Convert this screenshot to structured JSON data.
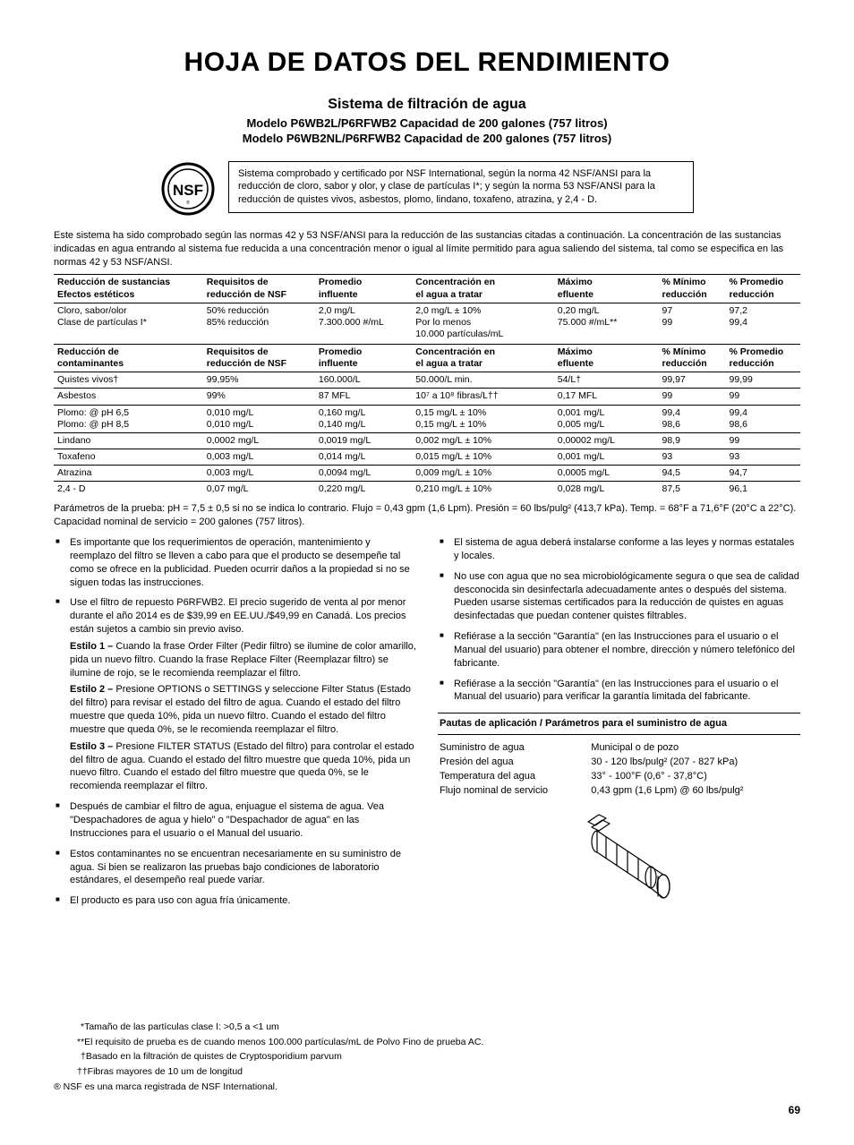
{
  "title": "HOJA DE DATOS DEL RENDIMIENTO",
  "subtitle": "Sistema de filtración de agua",
  "model_lines": [
    "Modelo P6WB2L/P6RFWB2 Capacidad de 200 galones (757 litros)",
    "Modelo P6WB2NL/P6RFWB2 Capacidad de 200 galones (757 litros)"
  ],
  "intro_box": "Sistema comprobado y certificado por NSF International, según la norma 42 NSF/ANSI para la reducción de cloro, sabor y olor, y clase de partículas I*; y según la norma 53 NSF/ANSI para la reducción de quistes vivos, asbestos, plomo, lindano, toxafeno, atrazina, y 2,4 - D.",
  "system_note": "Este sistema ha sido comprobado según las normas 42 y 53 NSF/ANSI para la reducción de las sustancias citadas a continuación. La concentración de las sustancias indicadas en agua entrando al sistema fue reducida a una concentración menor o igual al límite permitido para agua saliendo del sistema, tal como se especifica en las normas 42 y 53 NSF/ANSI.",
  "table1": {
    "headers": [
      "Reducción de sustancias\nEfectos estéticos",
      "Requisitos de\nreducción de NSF",
      "Promedio\ninfluente",
      "Concentración en\nel agua a tratar",
      "Máximo\nefluente",
      "% Mínimo\nreducción",
      "% Promedio\nreducción"
    ],
    "rows": [
      [
        "Cloro, sabor/olor\nClase de partículas I*",
        "50% reducción\n85% reducción",
        "2,0 mg/L\n7.300.000 #/mL",
        "2,0 mg/L ± 10%\nPor lo menos\n10.000 partículas/mL",
        "0,20 mg/L\n75.000 #/mL**",
        "97\n99",
        "97,2\n99,4"
      ]
    ]
  },
  "table2": {
    "headers": [
      "Reducción de\ncontaminantes",
      "Requisitos de\nreducción de NSF",
      "Promedio\ninfluente",
      "Concentración en\nel agua a tratar",
      "Máximo\nefluente",
      "% Mínimo\nreducción",
      "% Promedio\nreducción"
    ],
    "rows": [
      [
        "Quistes vivos†",
        "99,95%",
        "160.000/L",
        "50.000/L min.",
        "54/L†",
        "99,97",
        "99,99"
      ],
      [
        "Asbestos",
        "99%",
        "87 MFL",
        "10⁷ a 10⁸ fibras/L††",
        "0,17 MFL",
        "99",
        "99"
      ],
      [
        "Plomo: @ pH 6,5\nPlomo: @ pH 8,5",
        "0,010 mg/L\n0,010 mg/L",
        "0,160 mg/L\n0,140 mg/L",
        "0,15 mg/L ± 10%\n0,15 mg/L ± 10%",
        "0,001 mg/L\n0,005 mg/L",
        "99,4\n98,6",
        "99,4\n98,6"
      ],
      [
        "Lindano",
        "0,0002 mg/L",
        "0,0019 mg/L",
        "0,002 mg/L ± 10%",
        "0,00002 mg/L",
        "98,9",
        "99"
      ],
      [
        "Toxafeno",
        "0,003 mg/L",
        "0,014 mg/L",
        "0,015 mg/L ± 10%",
        "0,001 mg/L",
        "93",
        "93"
      ],
      [
        "Atrazina",
        "0,003 mg/L",
        "0,0094 mg/L",
        "0,009 mg/L ± 10%",
        "0,0005 mg/L",
        "94,5",
        "94,7"
      ],
      [
        "2,4 - D",
        "0,07 mg/L",
        "0,220 mg/L",
        "0,210 mg/L ± 10%",
        "0,028 mg/L",
        "87,5",
        "96,1"
      ]
    ]
  },
  "params_line": "Parámetros de la prueba: pH = 7,5 ± 0,5 si no se indica lo contrario. Flujo = 0,43 gpm (1,6 Lpm). Presión = 60 lbs/pulg² (413,7 kPa). Temp. = 68°F a 71,6°F (20°C a 22°C). Capacidad nominal de servicio = 200 galones (757 litros).",
  "left_bullets_1": "Es importante que los requerimientos de operación, mantenimiento y reemplazo del filtro se lleven a cabo para que el producto se desempeñe tal como se ofrece en la publicidad. Pueden ocurrir daños a la propiedad si no se siguen todas las instrucciones.",
  "left_bullets_2_intro": "Use el filtro de repuesto P6RFWB2. El precio sugerido de venta al por menor durante el año 2014 es de $39,99 en EE.UU./$49,99 en Canadá. Los precios están sujetos a cambio sin previo aviso.",
  "estilo1": "Estilo 1 – Cuando la frase Order Filter (Pedir filtro) se ilumine de color amarillo, pida un nuevo filtro. Cuando la frase Replace Filter (Reemplazar filtro) se ilumine de rojo, se le recomienda reemplazar el filtro.",
  "estilo2": "Estilo 2 – Presione OPTIONS o SETTINGS y seleccione Filter Status (Estado del filtro) para revisar el estado del filtro de agua. Cuando el estado del filtro muestre que queda 10%, pida un nuevo filtro. Cuando el estado del filtro muestre que queda 0%, se le recomienda reemplazar el filtro.",
  "estilo3": "Estilo 3 – Presione FILTER STATUS (Estado del filtro) para controlar el estado del filtro de agua. Cuando el estado del filtro muestre que queda 10%, pida un nuevo filtro. Cuando el estado del filtro muestre que queda 0%, se le recomienda reemplazar el filtro.",
  "left_bullets_3": "Después de cambiar el filtro de agua, enjuague el sistema de agua. Vea \"Despachadores de agua y hielo\" o \"Despachador de agua\" en las Instrucciones para el usuario o el Manual del usuario.",
  "left_bullets_4": "Estos contaminantes no se encuentran necesariamente en su suministro de agua. Si bien se realizaron las pruebas bajo condiciones de laboratorio estándares, el desempeño real puede variar.",
  "left_bullets_5": "El producto es para uso con agua fría únicamente.",
  "right_bullets_1": "El sistema de agua deberá instalarse conforme a las leyes y normas estatales y locales.",
  "right_bullets_2": "No use con agua que no sea microbiológicamente segura o que sea de calidad desconocida sin desinfectarla adecuadamente antes o después del sistema. Pueden usarse sistemas certificados para la reducción de quistes en aguas desinfectadas que puedan contener quistes filtrables.",
  "right_bullets_3": "Refiérase a la sección \"Garantía\" (en las Instrucciones para el usuario o el Manual del usuario) para obtener el nombre, dirección y número telefónico del fabricante.",
  "right_bullets_4": "Refiérase a la sección \"Garantía\" (en las Instrucciones para el usuario o el Manual del usuario) para verificar la garantía limitada del fabricante.",
  "app_title": "Pautas de aplicación / Parámetros para el suministro de agua",
  "app_params": [
    [
      "Suministro de agua",
      "Municipal o de pozo"
    ],
    [
      "Presión del agua",
      "30 - 120 lbs/pulg² (207 - 827 kPa)"
    ],
    [
      "Temperatura del agua",
      "33° - 100°F (0,6° - 37,8°C)"
    ],
    [
      "Flujo nominal de servicio",
      "0,43 gpm (1,6 Lpm) @ 60 lbs/pulg²"
    ]
  ],
  "footnotes": [
    "*Tamaño de las partículas clase I: >0,5 a <1 um",
    "**El requisito de prueba es de cuando menos 100.000 partículas/mL de Polvo Fino de prueba AC.",
    "†Basado en la filtración de quistes de Cryptosporidium parvum",
    "††Fibras mayores de 10 um de longitud"
  ],
  "trademark": "® NSF es una marca registrada de NSF International.",
  "page_number": "69",
  "col_widths": [
    "20%",
    "15%",
    "13%",
    "19%",
    "14%",
    "9%",
    "10%"
  ]
}
